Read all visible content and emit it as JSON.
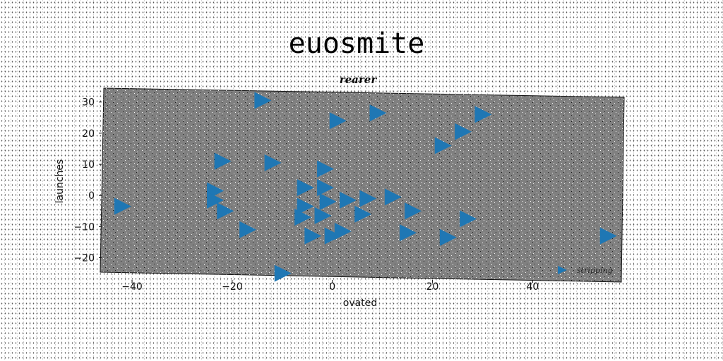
{
  "figure": {
    "suptitle": "euosmite",
    "background": "#ffffff"
  },
  "chart_data": {
    "type": "scatter",
    "title": "rearer",
    "xlabel": "ovated",
    "ylabel": "launches",
    "xlim": [
      -46,
      58
    ],
    "ylim": [
      -26,
      33
    ],
    "xticks": [
      -40,
      -20,
      0,
      20,
      40
    ],
    "yticks": [
      -20,
      -10,
      0,
      10,
      20,
      30
    ],
    "grid": false,
    "plot_background": "#808080",
    "legend": {
      "position": "lower-right"
    },
    "series": [
      {
        "name": "stripping",
        "marker": "triangle-right",
        "color": "#1f77b4",
        "points": [
          [
            -42,
            -3.5
          ],
          [
            -14,
            30.5
          ],
          [
            1,
            24
          ],
          [
            9,
            26.5
          ],
          [
            30,
            26
          ],
          [
            26,
            20.5
          ],
          [
            22,
            16
          ],
          [
            -22,
            11
          ],
          [
            -12,
            10.5
          ],
          [
            -1.5,
            8.5
          ],
          [
            -5.5,
            2.5
          ],
          [
            -1.5,
            2.5
          ],
          [
            -23.5,
            1.5
          ],
          [
            -23.5,
            -1.5
          ],
          [
            -21.5,
            -5
          ],
          [
            -5.5,
            -3.5
          ],
          [
            -1,
            -2
          ],
          [
            3,
            -1.5
          ],
          [
            7,
            -1
          ],
          [
            12,
            -0.5
          ],
          [
            -6,
            -7
          ],
          [
            -2,
            -6.5
          ],
          [
            6,
            -6
          ],
          [
            16,
            -5
          ],
          [
            27,
            -7.5
          ],
          [
            -17,
            -11
          ],
          [
            -4,
            -13
          ],
          [
            0,
            -13
          ],
          [
            2,
            -11.5
          ],
          [
            15,
            -12
          ],
          [
            23,
            -13.5
          ],
          [
            55,
            -13
          ],
          [
            -10,
            -25
          ]
        ]
      }
    ]
  }
}
